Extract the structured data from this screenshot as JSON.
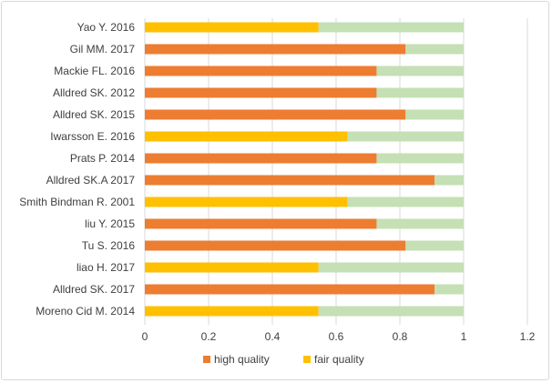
{
  "chart_data": {
    "type": "bar",
    "orientation": "horizontal",
    "stacked": true,
    "categories": [
      "Yao Y. 2016",
      "Gil MM.  2017",
      "Mackie FL. 2016",
      "Alldred SK.  2012",
      "Alldred SK. 2015",
      "Iwarsson E. 2016",
      "Prats P.  2014",
      "Alldred SK.A  2017",
      "Smith Bindman R.  2001",
      "liu Y.  2015",
      "Tu S. 2016",
      "liao H. 2017",
      "Alldred SK. 2017",
      "Moreno Cid M. 2014"
    ],
    "quality": [
      "fair",
      "high",
      "high",
      "high",
      "high",
      "fair",
      "high",
      "high",
      "fair",
      "high",
      "high",
      "fair",
      "high",
      "fair"
    ],
    "values": [
      0.545,
      0.818,
      0.727,
      0.727,
      0.818,
      0.636,
      0.727,
      0.909,
      0.636,
      0.727,
      0.818,
      0.545,
      0.909,
      0.545
    ],
    "remainder_total": 1,
    "xlim": [
      0,
      1.2
    ],
    "xticks": [
      0,
      0.2,
      0.4,
      0.6,
      0.8,
      1,
      1.2
    ],
    "xtick_labels": [
      "0",
      "0.2",
      "0.4",
      "0.6",
      "0.8",
      "1",
      "1.2"
    ],
    "grid": "vertical",
    "legend": {
      "position": "bottom",
      "entries": [
        {
          "label": "high quality",
          "color": "#ED7D31"
        },
        {
          "label": "fair quality",
          "color": "#FFC000"
        }
      ]
    },
    "colors": {
      "high": "#ED7D31",
      "fair": "#FFC000",
      "remainder": "#C5E0B4",
      "grid": "#d9d9d9",
      "text": "#404040"
    }
  }
}
